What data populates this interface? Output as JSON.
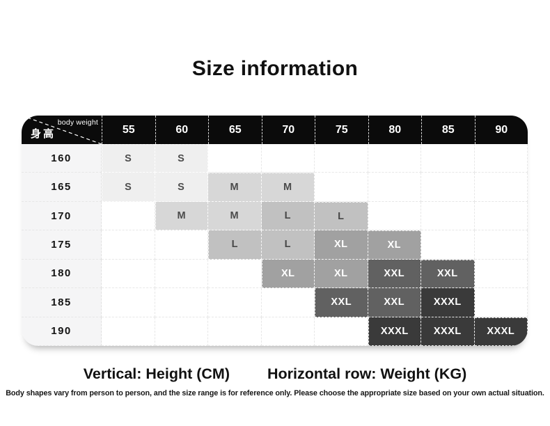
{
  "chart_data": {
    "type": "table",
    "title": "Size information",
    "corner_top_label": "body weight",
    "corner_bottom_label": "身高",
    "columns_weight_kg": [
      "55",
      "60",
      "65",
      "70",
      "75",
      "80",
      "85",
      "90"
    ],
    "rows": [
      {
        "height_cm": "160",
        "sizes": [
          "S",
          "S",
          "",
          "",
          "",
          "",
          "",
          ""
        ]
      },
      {
        "height_cm": "165",
        "sizes": [
          "S",
          "S",
          "M",
          "M",
          "",
          "",
          "",
          ""
        ]
      },
      {
        "height_cm": "170",
        "sizes": [
          "",
          "M",
          "M",
          "L",
          "L",
          "",
          "",
          ""
        ]
      },
      {
        "height_cm": "175",
        "sizes": [
          "",
          "",
          "L",
          "L",
          "XL",
          "XL",
          "",
          ""
        ]
      },
      {
        "height_cm": "180",
        "sizes": [
          "",
          "",
          "",
          "XL",
          "XL",
          "XXL",
          "XXL",
          ""
        ]
      },
      {
        "height_cm": "185",
        "sizes": [
          "",
          "",
          "",
          "",
          "XXL",
          "XXL",
          "XXXL",
          ""
        ]
      },
      {
        "height_cm": "190",
        "sizes": [
          "",
          "",
          "",
          "",
          "",
          "XXXL",
          "XXXL",
          "XXXL"
        ]
      }
    ],
    "legend_vertical": "Vertical: Height (CM)",
    "legend_horizontal": "Horizontal row: Weight (KG)",
    "footnote": "Body shapes vary from person to person, and the size range is for reference only. Please choose the appropriate size based on your own actual situation."
  },
  "colors": {
    "header_bg": "#0b0b0b",
    "header_text": "#ffffff",
    "height_col_bg": "#f5f5f6",
    "size_cells": {
      "S": {
        "bg": "#efefef",
        "text": "#4d4d4d"
      },
      "M": {
        "bg": "#d7d7d7",
        "text": "#4a4a4a"
      },
      "L": {
        "bg": "#c1c1c1",
        "text": "#474747"
      },
      "XL": {
        "bg": "#a1a1a1",
        "text": "#ffffff"
      },
      "XXL": {
        "bg": "#616161",
        "text": "#ffffff"
      },
      "XXXL": {
        "bg": "#3a3a3a",
        "text": "#ffffff"
      }
    }
  }
}
